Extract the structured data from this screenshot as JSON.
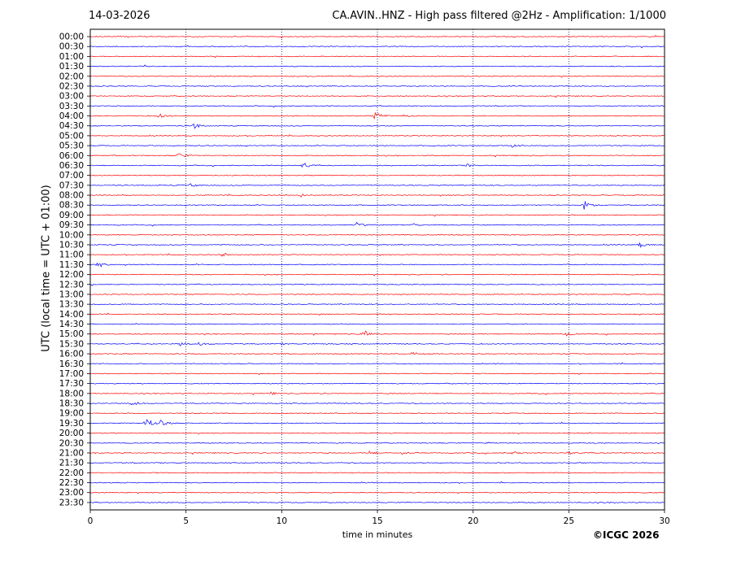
{
  "header": {
    "date": "14-03-2026",
    "title": "CA.AVIN..HNZ - High pass filtered @2Hz - Amplification: 1/1000"
  },
  "footer": {
    "copyright": "©ICGC 2026"
  },
  "chart_data": {
    "type": "line",
    "title": "CA.AVIN..HNZ - High pass filtered @2Hz - Amplification: 1/1000",
    "xlabel": "time in minutes",
    "ylabel": "UTC (local time = UTC + 01:00)",
    "xlim": [
      0,
      30
    ],
    "xticks": [
      "0",
      "5",
      "10",
      "15",
      "20",
      "25",
      "30"
    ],
    "grid_x": [
      5,
      10,
      15,
      20,
      25
    ],
    "colors": {
      "odd_row": "#ff0000",
      "even_row": "#0000ff",
      "frame": "#000000",
      "grid": "#000080"
    },
    "rows": [
      "00:00",
      "00:30",
      "01:00",
      "01:30",
      "02:00",
      "02:30",
      "03:00",
      "03:30",
      "04:00",
      "04:30",
      "05:00",
      "05:30",
      "06:00",
      "06:30",
      "07:00",
      "07:30",
      "08:00",
      "08:30",
      "09:00",
      "09:30",
      "10:00",
      "10:30",
      "11:00",
      "11:30",
      "12:00",
      "12:30",
      "13:00",
      "13:30",
      "14:00",
      "14:30",
      "15:00",
      "15:30",
      "16:00",
      "16:30",
      "17:00",
      "17:30",
      "18:00",
      "18:30",
      "19:00",
      "19:30",
      "20:00",
      "20:30",
      "21:00",
      "21:30",
      "22:00",
      "22:30",
      "23:00",
      "23:30"
    ],
    "events": [
      {
        "row": "04:00",
        "minute": 3.6,
        "amplitude": 3
      },
      {
        "row": "04:00",
        "minute": 14.9,
        "amplitude": 6
      },
      {
        "row": "04:00",
        "minute": 16.4,
        "amplitude": 2
      },
      {
        "row": "04:30",
        "minute": 5.4,
        "amplitude": 4
      },
      {
        "row": "05:30",
        "minute": 22.0,
        "amplitude": 2
      },
      {
        "row": "06:00",
        "minute": 4.6,
        "amplitude": 4
      },
      {
        "row": "06:30",
        "minute": 11.1,
        "amplitude": 4
      },
      {
        "row": "06:30",
        "minute": 19.7,
        "amplitude": 2
      },
      {
        "row": "07:30",
        "minute": 5.2,
        "amplitude": 2
      },
      {
        "row": "08:00",
        "minute": 11.0,
        "amplitude": 2
      },
      {
        "row": "08:30",
        "minute": 25.8,
        "amplitude": 5
      },
      {
        "row": "09:30",
        "minute": 13.9,
        "amplitude": 3
      },
      {
        "row": "09:30",
        "minute": 16.8,
        "amplitude": 3
      },
      {
        "row": "10:30",
        "minute": 28.7,
        "amplitude": 3
      },
      {
        "row": "11:00",
        "minute": 6.9,
        "amplitude": 2
      },
      {
        "row": "11:30",
        "minute": 0.4,
        "amplitude": 4
      },
      {
        "row": "15:00",
        "minute": 14.2,
        "amplitude": 6
      },
      {
        "row": "15:00",
        "minute": 24.8,
        "amplitude": 3
      },
      {
        "row": "15:30",
        "minute": 4.7,
        "amplitude": 2
      },
      {
        "row": "15:30",
        "minute": 5.7,
        "amplitude": 2
      },
      {
        "row": "15:30",
        "minute": 10.0,
        "amplitude": 1
      },
      {
        "row": "16:00",
        "minute": 16.8,
        "amplitude": 2
      },
      {
        "row": "18:00",
        "minute": 9.4,
        "amplitude": 2
      },
      {
        "row": "18:30",
        "minute": 2.2,
        "amplitude": 3
      },
      {
        "row": "19:30",
        "minute": 2.9,
        "amplitude": 8
      },
      {
        "row": "19:30",
        "minute": 3.7,
        "amplitude": 4
      },
      {
        "row": "20:30",
        "minute": 20.7,
        "amplitude": 1
      },
      {
        "row": "21:00",
        "minute": 14.6,
        "amplitude": 2
      },
      {
        "row": "21:00",
        "minute": 16.3,
        "amplitude": 2
      },
      {
        "row": "21:00",
        "minute": 22.1,
        "amplitude": 2
      },
      {
        "row": "21:00",
        "minute": 25.0,
        "amplitude": 2
      }
    ]
  }
}
